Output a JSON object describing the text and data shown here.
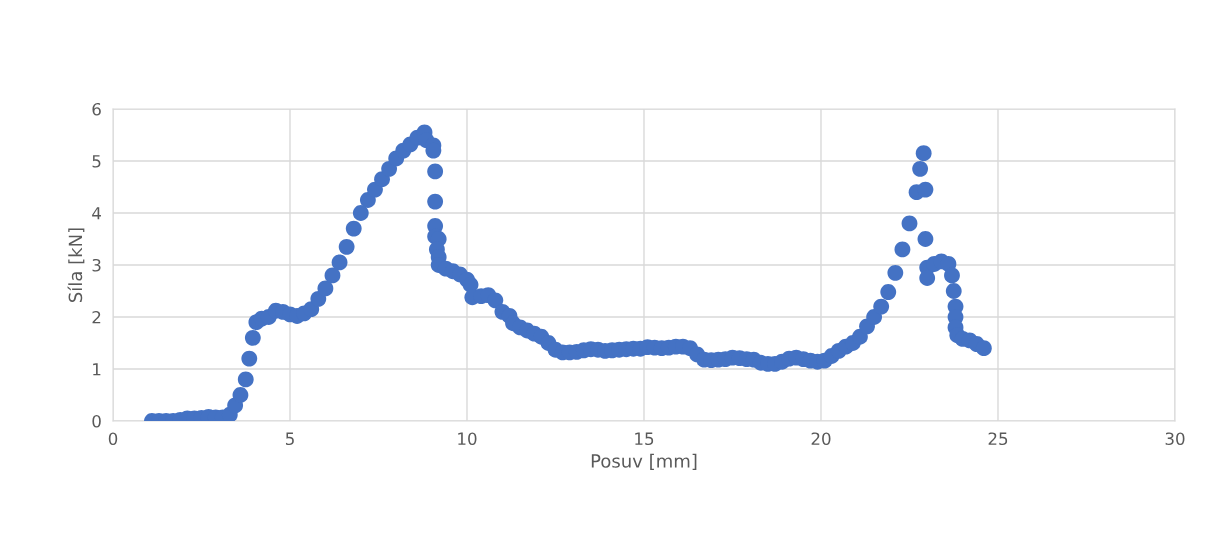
{
  "chart_data": {
    "type": "scatter",
    "xlabel": "Posuv [mm]",
    "ylabel": "Síla [kN]",
    "xlim": [
      0,
      30
    ],
    "xticks": [
      0,
      5,
      10,
      15,
      20,
      25,
      30
    ],
    "ylim": [
      0,
      6
    ],
    "yticks": [
      0,
      1,
      2,
      3,
      4,
      5,
      6
    ],
    "grid": true,
    "marker": "circle",
    "series": [
      {
        "color": "#4472c4",
        "x": [
          1.1,
          1.3,
          1.5,
          1.7,
          1.9,
          2.1,
          2.3,
          2.5,
          2.7,
          2.9,
          3.1,
          3.3,
          3.45,
          3.6,
          3.75,
          3.85,
          3.95,
          4.05,
          4.2,
          4.4,
          4.6,
          4.8,
          5.0,
          5.2,
          5.4,
          5.6,
          5.8,
          6.0,
          6.2,
          6.4,
          6.6,
          6.8,
          7.0,
          7.2,
          7.4,
          7.6,
          7.8,
          8.0,
          8.2,
          8.4,
          8.6,
          8.8,
          8.85,
          9.05,
          9.05,
          9.1,
          9.1,
          9.1,
          9.1,
          9.2,
          9.15,
          9.2,
          9.2,
          9.4,
          9.6,
          9.8,
          10.0,
          10.1,
          10.15,
          10.4,
          10.6,
          10.8,
          11.0,
          11.2,
          11.3,
          11.5,
          11.7,
          11.9,
          12.1,
          12.3,
          12.5,
          12.7,
          12.9,
          13.1,
          13.3,
          13.5,
          13.7,
          13.9,
          14.1,
          14.3,
          14.5,
          14.7,
          14.9,
          15.1,
          15.3,
          15.5,
          15.7,
          15.9,
          16.1,
          16.3,
          16.5,
          16.7,
          16.9,
          17.1,
          17.3,
          17.5,
          17.7,
          17.9,
          18.1,
          18.3,
          18.5,
          18.7,
          18.9,
          19.1,
          19.3,
          19.5,
          19.7,
          19.9,
          20.1,
          20.3,
          20.5,
          20.7,
          20.9,
          21.1,
          21.3,
          21.5,
          21.7,
          21.9,
          22.1,
          22.3,
          22.5,
          22.7,
          22.8,
          22.9,
          22.95,
          22.95,
          23.0,
          23.0,
          23.2,
          23.4,
          23.6,
          23.7,
          23.75,
          23.8,
          23.8,
          23.8,
          23.85,
          24.0,
          24.2,
          24.4,
          24.6
        ],
        "values": [
          0,
          0,
          0,
          0,
          0.02,
          0.05,
          0.05,
          0.06,
          0.08,
          0.07,
          0.07,
          0.12,
          0.3,
          0.5,
          0.8,
          1.2,
          1.6,
          1.9,
          1.97,
          2.0,
          2.12,
          2.1,
          2.05,
          2.02,
          2.07,
          2.15,
          2.35,
          2.55,
          2.8,
          3.05,
          3.35,
          3.7,
          4.0,
          4.25,
          4.45,
          4.65,
          4.85,
          5.05,
          5.2,
          5.32,
          5.45,
          5.55,
          5.4,
          5.3,
          5.2,
          4.8,
          4.22,
          3.75,
          3.55,
          3.5,
          3.3,
          3.15,
          3.0,
          2.93,
          2.88,
          2.82,
          2.72,
          2.62,
          2.38,
          2.4,
          2.42,
          2.32,
          2.1,
          2.02,
          1.88,
          1.8,
          1.74,
          1.68,
          1.62,
          1.5,
          1.37,
          1.32,
          1.32,
          1.33,
          1.36,
          1.38,
          1.37,
          1.35,
          1.36,
          1.37,
          1.38,
          1.39,
          1.39,
          1.42,
          1.41,
          1.4,
          1.41,
          1.43,
          1.43,
          1.4,
          1.28,
          1.18,
          1.17,
          1.18,
          1.19,
          1.22,
          1.21,
          1.19,
          1.18,
          1.12,
          1.1,
          1.1,
          1.14,
          1.2,
          1.22,
          1.19,
          1.16,
          1.14,
          1.16,
          1.25,
          1.35,
          1.43,
          1.5,
          1.62,
          1.82,
          2.0,
          2.2,
          2.48,
          2.85,
          3.3,
          3.8,
          4.4,
          4.85,
          5.15,
          4.45,
          3.5,
          2.95,
          2.75,
          3.02,
          3.07,
          3.02,
          2.8,
          2.5,
          2.2,
          2.0,
          1.8,
          1.65,
          1.58,
          1.55,
          1.48,
          1.4
        ]
      }
    ]
  }
}
